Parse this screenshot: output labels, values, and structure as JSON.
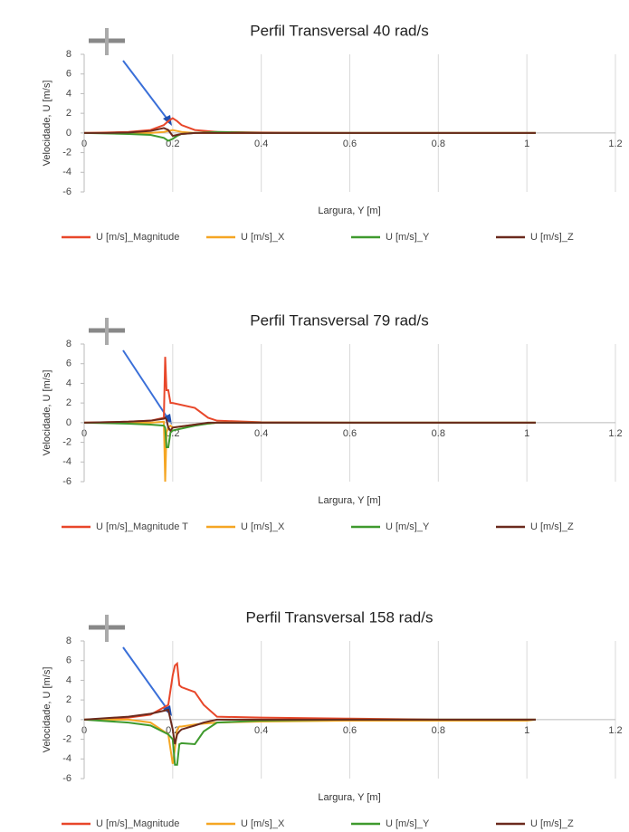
{
  "chart_data": [
    {
      "type": "line",
      "title": "Perfil Transversal 40 rad/s",
      "xlabel": "Largura, Y [m]",
      "ylabel": "Velocidade, U [m/s]",
      "x": [
        0,
        0.05,
        0.1,
        0.15,
        0.18,
        0.19,
        0.2,
        0.21,
        0.22,
        0.25,
        0.3,
        0.4,
        0.6,
        0.8,
        1.0,
        1.02
      ],
      "series": [
        {
          "name": "U [m/s]_Magnitude",
          "color": "#e8472a",
          "values": [
            0,
            0.05,
            0.1,
            0.3,
            0.8,
            1.2,
            1.5,
            1.2,
            0.8,
            0.3,
            0.1,
            0.05,
            0,
            0,
            0,
            0
          ]
        },
        {
          "name": "U [m/s]_X",
          "color": "#f5a623",
          "values": [
            0,
            0,
            0,
            0,
            0.1,
            0.2,
            0.3,
            0.2,
            0.1,
            0,
            0,
            0,
            0,
            0,
            0,
            0
          ]
        },
        {
          "name": "U [m/s]_Y",
          "color": "#3f9a2e",
          "values": [
            0,
            -0.05,
            -0.1,
            -0.2,
            -0.5,
            -0.8,
            -0.6,
            -0.3,
            -0.1,
            0,
            0.1,
            0,
            0,
            0,
            0,
            0
          ]
        },
        {
          "name": "U [m/s]_Z",
          "color": "#6b2a1e",
          "values": [
            0,
            0,
            0.05,
            0.2,
            0.5,
            0.3,
            -0.3,
            -0.2,
            -0.1,
            0,
            0,
            0,
            0,
            0,
            0,
            0
          ]
        }
      ],
      "xlim": [
        0,
        1.2
      ],
      "xticks": [
        0,
        0.2,
        0.4,
        0.6,
        0.8,
        1,
        1.2
      ],
      "ylim": [
        -6,
        8
      ],
      "yticks": [
        -6,
        -4,
        -2,
        0,
        2,
        4,
        6,
        8
      ],
      "grid": "x"
    },
    {
      "type": "line",
      "title": "Perfil Transversal 79 rad/s",
      "xlabel": "Largura, Y [m]",
      "ylabel": "Velocidade, U [m/s]",
      "x": [
        0,
        0.1,
        0.15,
        0.18,
        0.183,
        0.186,
        0.19,
        0.195,
        0.2,
        0.25,
        0.28,
        0.3,
        0.4,
        0.6,
        0.8,
        1.0,
        1.02
      ],
      "series": [
        {
          "name": "U [m/s]_Magnitude T",
          "color": "#e8472a",
          "values": [
            0,
            0.1,
            0.2,
            0.5,
            6.7,
            3.3,
            3.3,
            2,
            2,
            1.5,
            0.5,
            0.2,
            0.05,
            0,
            0,
            0,
            0
          ]
        },
        {
          "name": "U [m/s]_X",
          "color": "#f5a623",
          "values": [
            0,
            0,
            0,
            0.1,
            -6,
            -1,
            -0.5,
            -0.3,
            -0.5,
            -0.2,
            -0.1,
            0,
            0,
            0,
            0,
            0,
            0
          ]
        },
        {
          "name": "U [m/s]_Y",
          "color": "#3f9a2e",
          "values": [
            0,
            -0.1,
            -0.2,
            -0.3,
            -0.5,
            -2.5,
            -2.5,
            -1,
            -0.8,
            -0.3,
            -0.1,
            0,
            0,
            0,
            0,
            0,
            0
          ]
        },
        {
          "name": "U [m/s]_Z",
          "color": "#6b2a1e",
          "values": [
            0,
            0.1,
            0.2,
            0.4,
            0.5,
            0.3,
            -0.5,
            -0.8,
            -0.5,
            -0.2,
            0,
            0,
            0,
            0,
            0,
            0,
            0
          ]
        }
      ],
      "xlim": [
        0,
        1.2
      ],
      "xticks": [
        0,
        0.2,
        0.4,
        0.6,
        0.8,
        1,
        1.2
      ],
      "ylim": [
        -6,
        8
      ],
      "yticks": [
        -6,
        -4,
        -2,
        0,
        2,
        4,
        6,
        8
      ],
      "grid": "x"
    },
    {
      "type": "line",
      "title": "Perfil Transversal 158 rad/s",
      "xlabel": "Largura, Y [m]",
      "ylabel": "Velocidade, U [m/s]",
      "x": [
        0,
        0.1,
        0.15,
        0.19,
        0.2,
        0.205,
        0.21,
        0.215,
        0.22,
        0.25,
        0.27,
        0.3,
        0.4,
        0.6,
        0.8,
        1.0,
        1.02
      ],
      "series": [
        {
          "name": "U [m/s]_Magnitude",
          "color": "#e8472a",
          "values": [
            0,
            0.2,
            0.5,
            1.5,
            4.5,
            5.5,
            5.7,
            3.5,
            3.3,
            2.8,
            1.5,
            0.3,
            0.2,
            0.1,
            0,
            0,
            0
          ]
        },
        {
          "name": "U [m/s]_X",
          "color": "#f5a623",
          "values": [
            0,
            0,
            -0.3,
            -1.5,
            -4.5,
            -3,
            -1,
            -0.7,
            -0.7,
            -0.5,
            -0.4,
            -0.3,
            -0.2,
            -0.1,
            -0.1,
            -0.1,
            0
          ]
        },
        {
          "name": "U [m/s]_Y",
          "color": "#3f9a2e",
          "values": [
            0,
            -0.3,
            -0.6,
            -1.5,
            -2,
            -4.6,
            -4.6,
            -2.5,
            -2.4,
            -2.5,
            -1.2,
            -0.3,
            -0.1,
            0,
            0,
            0,
            0
          ]
        },
        {
          "name": "U [m/s]_Z",
          "color": "#6b2a1e",
          "values": [
            0,
            0.3,
            0.6,
            1,
            -1,
            -2.5,
            -1.5,
            -1.2,
            -1,
            -0.6,
            -0.3,
            0,
            0,
            0,
            0,
            0,
            0
          ]
        }
      ],
      "xlim": [
        0,
        1.2
      ],
      "xticks": [
        0,
        0.2,
        0.4,
        0.6,
        0.8,
        1,
        1.2
      ],
      "ylim": [
        -6,
        8
      ],
      "yticks": [
        -6,
        -4,
        -2,
        0,
        2,
        4,
        6,
        8
      ],
      "grid": "x"
    }
  ]
}
